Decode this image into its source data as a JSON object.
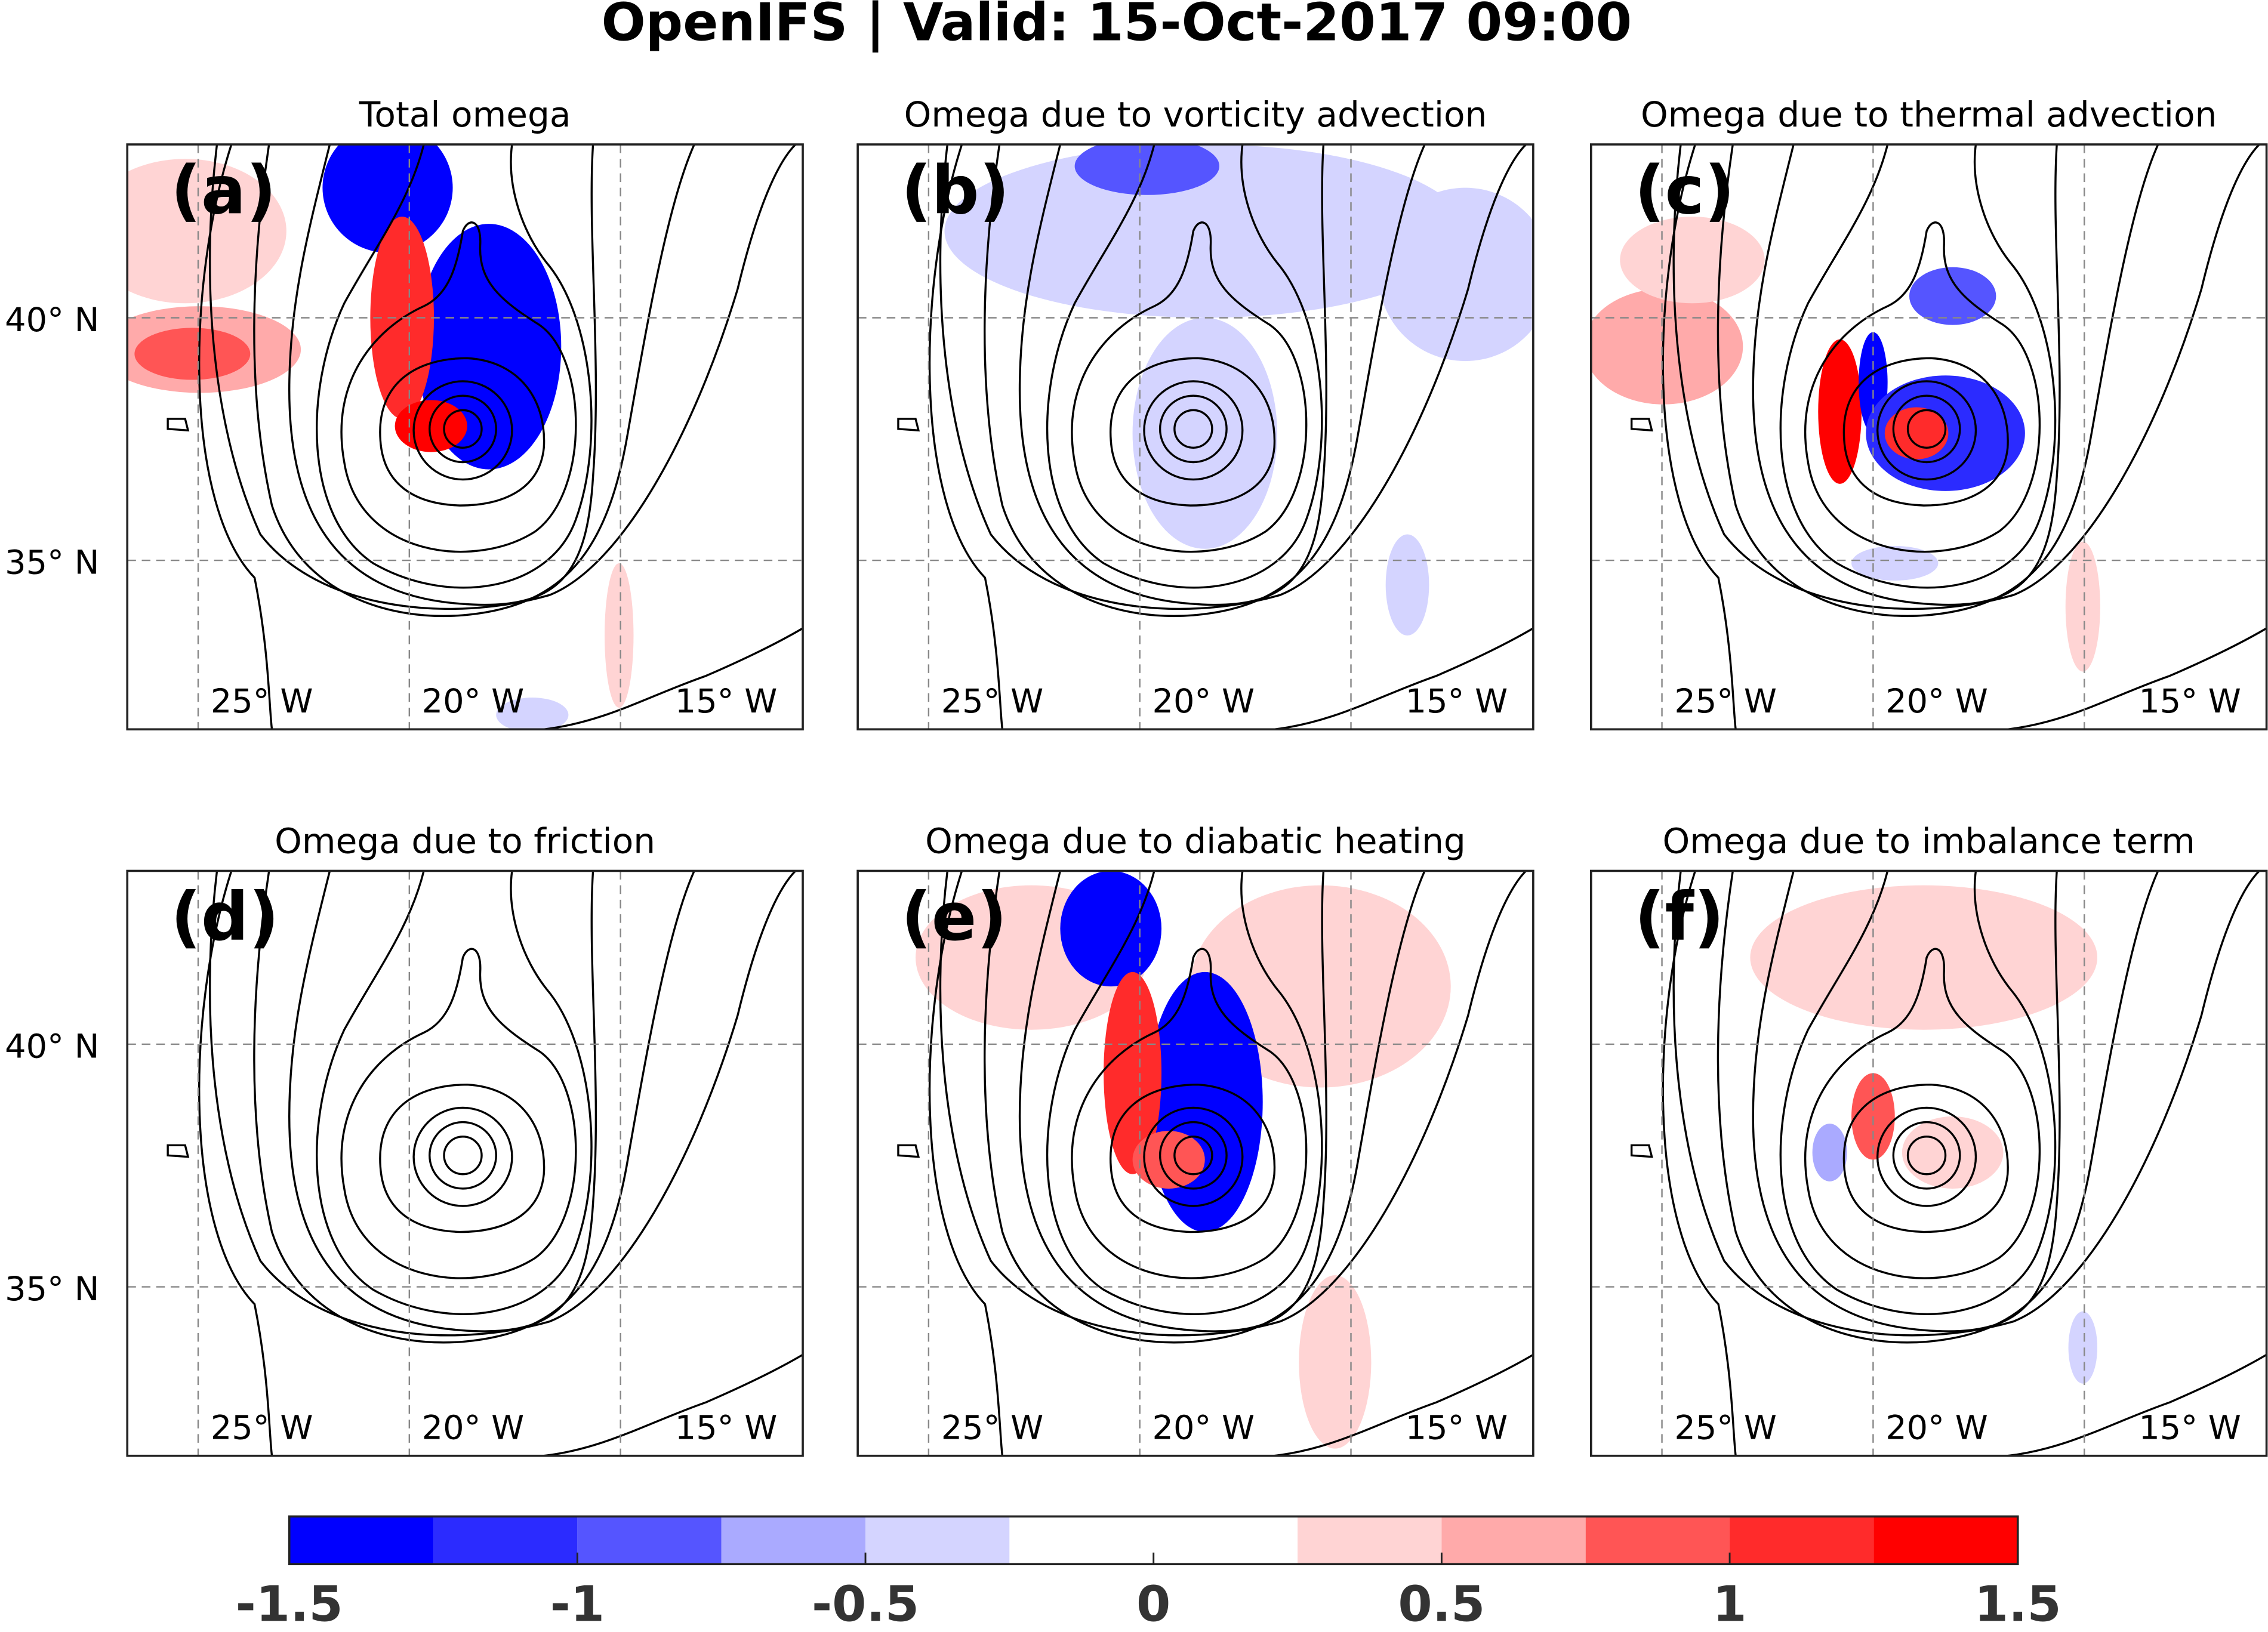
{
  "title": "OpenIFS | Valid: 15-Oct-2017 09:00",
  "panels": [
    {
      "label": "(a)",
      "title": "Total omega"
    },
    {
      "label": "(b)",
      "title": "Omega due to vorticity advection"
    },
    {
      "label": "(c)",
      "title": "Omega due to thermal advection"
    },
    {
      "label": "(d)",
      "title": "Omega due to friction"
    },
    {
      "label": "(e)",
      "title": "Omega due to diabatic heating"
    },
    {
      "label": "(f)",
      "title": "Omega due to imbalance term"
    }
  ],
  "lat_labels": [
    "40° N",
    "35° N"
  ],
  "lon_labels": [
    "25° W",
    "20° W",
    "15° W"
  ],
  "colorbar": {
    "bounds": [
      -1.5,
      -1.25,
      -1,
      -0.75,
      -0.5,
      -0.25,
      0,
      0.25,
      0.5,
      0.75,
      1,
      1.25,
      1.5
    ],
    "colors": [
      "#0000ff",
      "#2b2bff",
      "#5555ff",
      "#aaaaff",
      "#d4d4ff",
      "#ffffff",
      "#ffffff",
      "#ffd4d4",
      "#ffaaaa",
      "#ff5555",
      "#ff2b2b",
      "#ff0000"
    ],
    "lim": [
      -1.5,
      1.5
    ],
    "ticks": [
      -1.5,
      -1,
      -0.5,
      0,
      0.5,
      1,
      1.5
    ]
  }
}
